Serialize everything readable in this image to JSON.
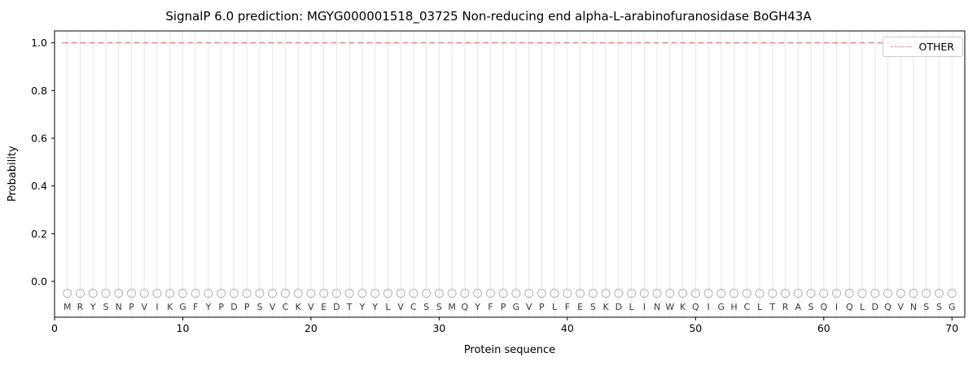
{
  "chart_data": {
    "type": "line",
    "title": "SignalP 6.0 prediction: MGYG000001518_03725 Non-reducing end alpha-L-arabinofuranosidase BoGH43A",
    "xlabel": "Protein sequence",
    "ylabel": "Probability",
    "xlim": [
      0,
      71
    ],
    "ylim": [
      -0.15,
      1.05
    ],
    "xticks": [
      0,
      10,
      20,
      30,
      40,
      50,
      60,
      70
    ],
    "yticks": [
      0.0,
      0.2,
      0.4,
      0.6,
      0.8,
      1.0
    ],
    "grid": "vertical line at every residue position 1-70",
    "legend_position": "upper right",
    "series": [
      {
        "name": "OTHER",
        "line_style": "dashed",
        "color": "#f4807f",
        "y_constant": 1.0,
        "x_start": 1,
        "x_end": 70
      }
    ],
    "sequence": "MRYSNPVIKGFYPDPSVCKVEDTYYLVCSSMQYFPGVPLFESKDLINWKQIGHCLTRASQIQLDQVNSSG",
    "sequence_length": 70,
    "marker_y": -0.05,
    "letter_y": -0.105,
    "colors": {
      "grid": "#e7e7e7",
      "marker": "#b0b0b0",
      "letter": "#3a3a3a",
      "spine": "#000000",
      "other_line": "#f4807f"
    }
  }
}
